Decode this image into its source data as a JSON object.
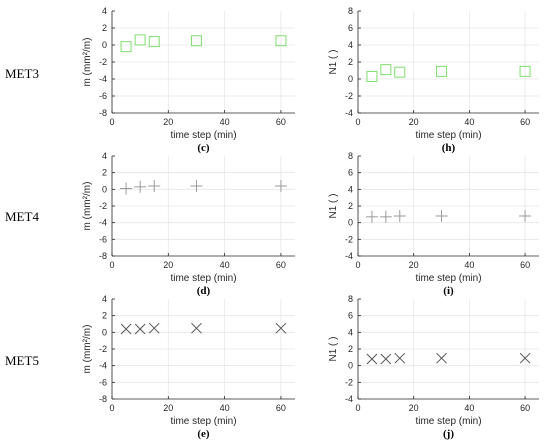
{
  "row_labels": [
    "MET3",
    "MET4",
    "MET5"
  ],
  "chart_data": [
    {
      "type": "scatter",
      "panel_label": "(c)",
      "xlabel": "time step (min)",
      "ylabel": "m (mm²/m)",
      "xlim": [
        0,
        65
      ],
      "ylim": [
        -8,
        4
      ],
      "xticks": [
        0,
        20,
        40,
        60
      ],
      "yticks": [
        4,
        2,
        0,
        -2,
        -4,
        -6,
        -8
      ],
      "grid": true,
      "marker": "square",
      "color": "#7fdd6f",
      "x": [
        5,
        10,
        15,
        30,
        60
      ],
      "y": [
        -0.2,
        0.6,
        0.4,
        0.5,
        0.5
      ]
    },
    {
      "type": "scatter",
      "panel_label": "(h)",
      "xlabel": "time step (min)",
      "ylabel": "N1 ( )",
      "xlim": [
        0,
        65
      ],
      "ylim": [
        -4,
        8
      ],
      "xticks": [
        0,
        20,
        40,
        60
      ],
      "yticks": [
        8,
        6,
        4,
        2,
        0,
        -2,
        -4
      ],
      "grid": true,
      "marker": "square",
      "color": "#7fdd6f",
      "x": [
        5,
        10,
        15,
        30,
        60
      ],
      "y": [
        0.3,
        1.1,
        0.8,
        0.9,
        0.9
      ]
    },
    {
      "type": "scatter",
      "panel_label": "(d)",
      "xlabel": "time step (min)",
      "ylabel": "m (mm²/m)",
      "xlim": [
        0,
        65
      ],
      "ylim": [
        -8,
        4
      ],
      "xticks": [
        0,
        20,
        40,
        60
      ],
      "yticks": [
        4,
        2,
        0,
        -2,
        -4,
        -6,
        -8
      ],
      "grid": true,
      "marker": "plus",
      "color": "#9a9a9a",
      "x": [
        5,
        10,
        15,
        30,
        60
      ],
      "y": [
        0.1,
        0.3,
        0.4,
        0.4,
        0.4
      ]
    },
    {
      "type": "scatter",
      "panel_label": "(i)",
      "xlabel": "time step (min)",
      "ylabel": "N1 ( )",
      "xlim": [
        0,
        65
      ],
      "ylim": [
        -4,
        8
      ],
      "xticks": [
        0,
        20,
        40,
        60
      ],
      "yticks": [
        8,
        6,
        4,
        2,
        0,
        -2,
        -4
      ],
      "grid": true,
      "marker": "plus",
      "color": "#9a9a9a",
      "x": [
        5,
        10,
        15,
        30,
        60
      ],
      "y": [
        0.7,
        0.7,
        0.8,
        0.8,
        0.8
      ]
    },
    {
      "type": "scatter",
      "panel_label": "(e)",
      "xlabel": "time step (min)",
      "ylabel": "m (mm²/m)",
      "xlim": [
        0,
        65
      ],
      "ylim": [
        -8,
        4
      ],
      "xticks": [
        0,
        20,
        40,
        60
      ],
      "yticks": [
        4,
        2,
        0,
        -2,
        -4,
        -6,
        -8
      ],
      "grid": true,
      "marker": "x",
      "color": "#555555",
      "x": [
        5,
        10,
        15,
        30,
        60
      ],
      "y": [
        0.4,
        0.4,
        0.5,
        0.5,
        0.5
      ]
    },
    {
      "type": "scatter",
      "panel_label": "(j)",
      "xlabel": "time step (min)",
      "ylabel": "N1 ( )",
      "xlim": [
        0,
        65
      ],
      "ylim": [
        -4,
        8
      ],
      "xticks": [
        0,
        20,
        40,
        60
      ],
      "yticks": [
        8,
        6,
        4,
        2,
        0,
        -2,
        -4
      ],
      "grid": true,
      "marker": "x",
      "color": "#555555",
      "x": [
        5,
        10,
        15,
        30,
        60
      ],
      "y": [
        0.8,
        0.8,
        0.9,
        0.9,
        0.9
      ]
    }
  ]
}
